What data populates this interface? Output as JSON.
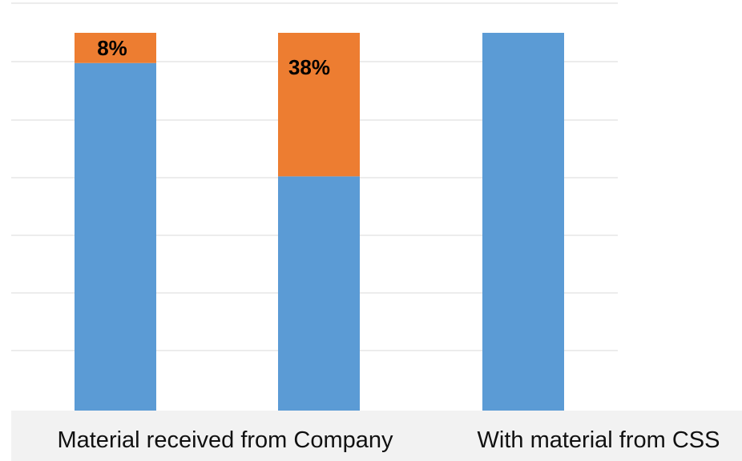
{
  "chart_data": {
    "type": "bar",
    "stacked": true,
    "categories": [
      "Material received from Company",
      "",
      "With material from CSS"
    ],
    "series": [
      {
        "values": [
          92,
          62,
          100
        ],
        "color": "#5b9bd5",
        "labels": [
          "",
          "",
          ""
        ]
      },
      {
        "values": [
          8,
          38,
          0
        ],
        "color": "#ed7d31",
        "labels": [
          "8%",
          "38%",
          ""
        ]
      }
    ],
    "ylim": [
      0,
      100
    ],
    "grid": true,
    "xlabel": "",
    "ylabel": ""
  }
}
